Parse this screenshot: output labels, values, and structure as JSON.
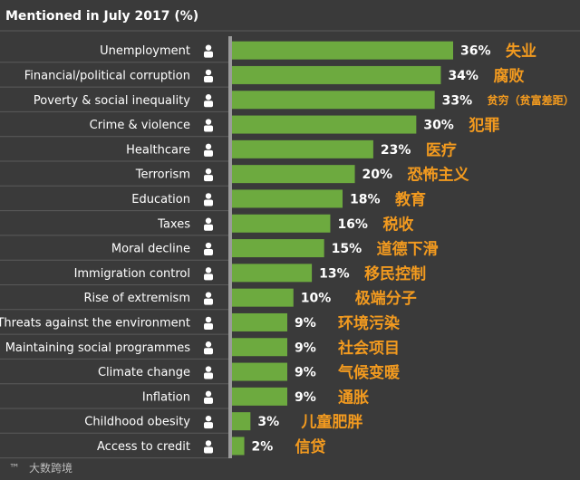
{
  "chart_data": {
    "type": "bar",
    "orientation": "horizontal",
    "title": "Mentioned in July 2017 (%)",
    "xlim": [
      0,
      40
    ],
    "bar_color": "#6daa3f",
    "annotation_color": "#f29a1f",
    "categories": [
      {
        "label": "Unemployment",
        "value": 36,
        "value_label": "36%",
        "cn": "失业",
        "icon": "office-worker-icon"
      },
      {
        "label": "Financial/political corruption",
        "value": 34,
        "value_label": "34%",
        "cn": "腐败",
        "icon": "money-bag-icon"
      },
      {
        "label": "Poverty & social inequality",
        "value": 33,
        "value_label": "33%",
        "cn": "贫穷（贫富差距）",
        "icon": "person-icon"
      },
      {
        "label": "Crime & violence",
        "value": 30,
        "value_label": "30%",
        "cn": "犯罪",
        "icon": "revolver-icon"
      },
      {
        "label": "Healthcare",
        "value": 23,
        "value_label": "23%",
        "cn": "医疗",
        "icon": "nurse-cap-icon"
      },
      {
        "label": "Terrorism",
        "value": 20,
        "value_label": "20%",
        "cn": "恐怖主义",
        "icon": "skull-crossbones-icon"
      },
      {
        "label": "Education",
        "value": 18,
        "value_label": "18%",
        "cn": "教育",
        "icon": "graduation-cap-icon"
      },
      {
        "label": "Taxes",
        "value": 16,
        "value_label": "16%",
        "cn": "税收",
        "icon": "money-hand-icon"
      },
      {
        "label": "Moral decline",
        "value": 15,
        "value_label": "15%",
        "cn": "道德下滑",
        "icon": "fighting-people-icon"
      },
      {
        "label": "Immigration control",
        "value": 13,
        "value_label": "13%",
        "cn": "移民控制",
        "icon": "suitcase-icon"
      },
      {
        "label": "Rise of extremism",
        "value": 10,
        "value_label": "10%",
        "cn": "极端分子",
        "icon": "skull-icon"
      },
      {
        "label": "Threats against the environment",
        "value": 9,
        "value_label": "9%",
        "cn": "环境污染",
        "icon": "polluted-water-icon"
      },
      {
        "label": "Maintaining social programmes",
        "value": 9,
        "value_label": "9%",
        "cn": "社会项目",
        "icon": "care-hands-icon"
      },
      {
        "label": "Climate change",
        "value": 9,
        "value_label": "9%",
        "cn": "气候变暖",
        "icon": "fire-globe-icon"
      },
      {
        "label": "Inflation",
        "value": 9,
        "value_label": "9%",
        "cn": "通胀",
        "icon": "rising-chart-icon"
      },
      {
        "label": "Childhood obesity",
        "value": 3,
        "value_label": "3%",
        "cn": "儿童肥胖",
        "icon": "obese-child-icon"
      },
      {
        "label": "Access to credit",
        "value": 2,
        "value_label": "2%",
        "cn": "信贷",
        "icon": "credit-card-icon"
      }
    ]
  },
  "watermark": "大数跨境"
}
